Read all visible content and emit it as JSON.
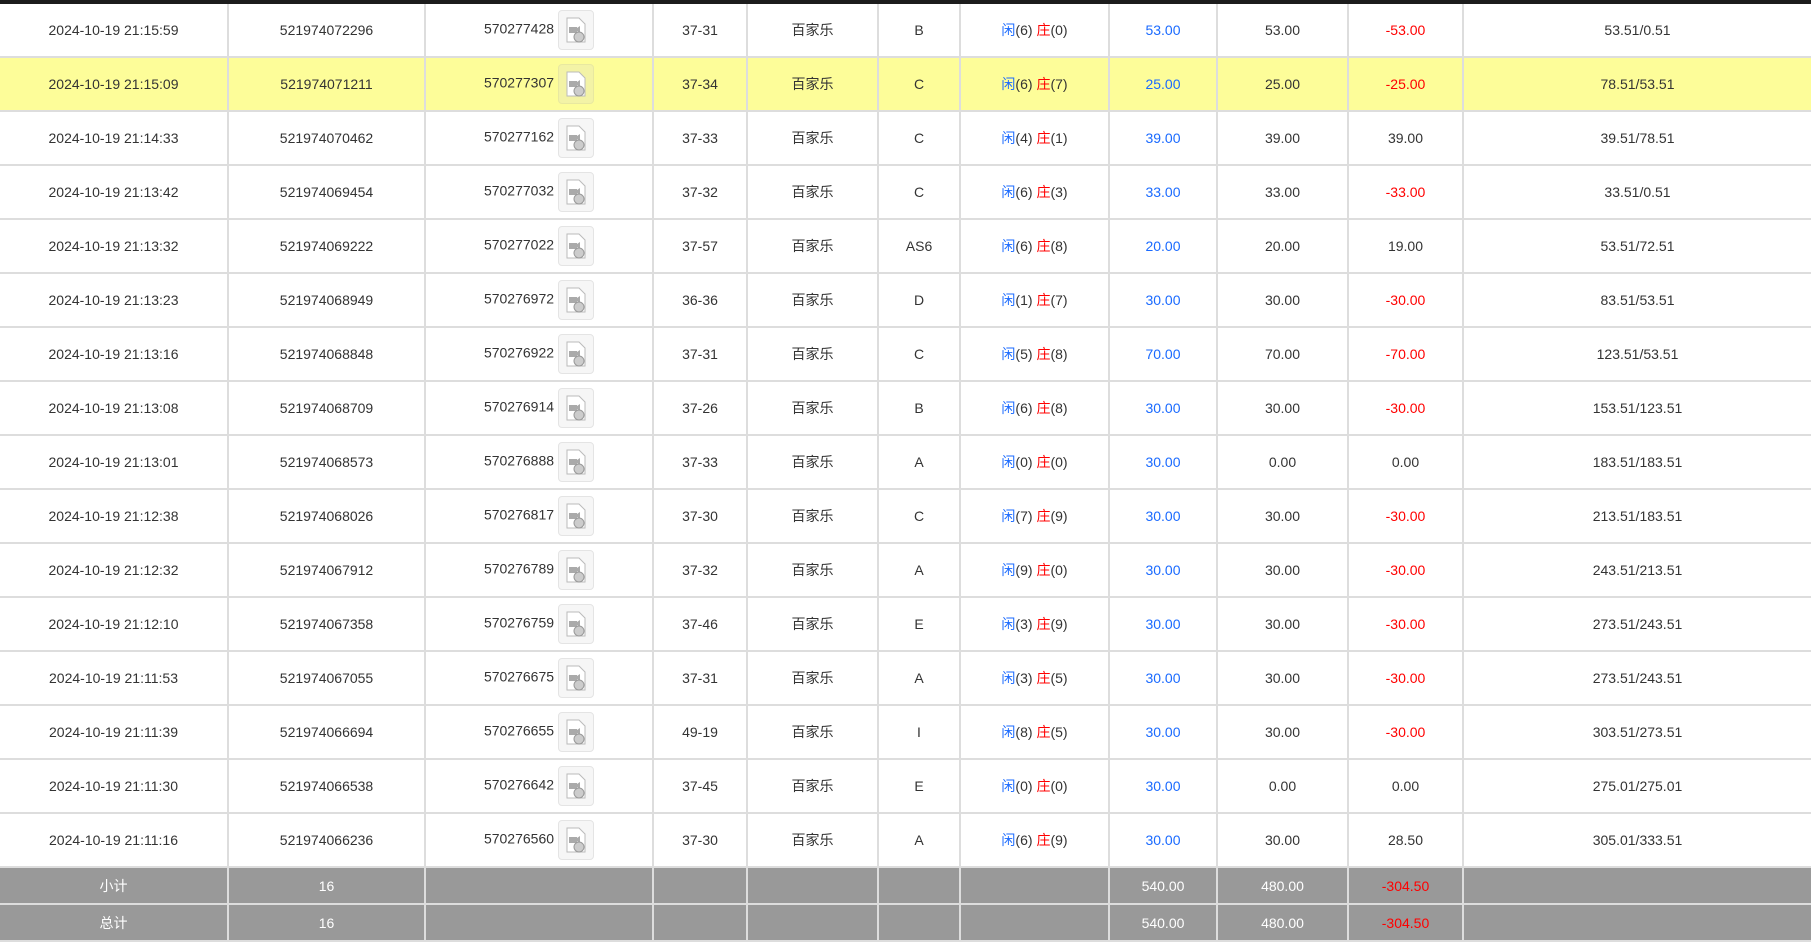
{
  "rows": [
    [
      "2024-10-19 21:15:59",
      "521974072296",
      "570277428",
      "37-31",
      "百家乐",
      "B",
      "6",
      "0",
      "53.00",
      "53.00",
      "-53.00",
      "53.51/0.51"
    ],
    [
      "2024-10-19 21:15:09",
      "521974071211",
      "570277307",
      "37-34",
      "百家乐",
      "C",
      "6",
      "7",
      "25.00",
      "25.00",
      "-25.00",
      "78.51/53.51"
    ],
    [
      "2024-10-19 21:14:33",
      "521974070462",
      "570277162",
      "37-33",
      "百家乐",
      "C",
      "4",
      "1",
      "39.00",
      "39.00",
      "39.00",
      "39.51/78.51"
    ],
    [
      "2024-10-19 21:13:42",
      "521974069454",
      "570277032",
      "37-32",
      "百家乐",
      "C",
      "6",
      "3",
      "33.00",
      "33.00",
      "-33.00",
      "33.51/0.51"
    ],
    [
      "2024-10-19 21:13:32",
      "521974069222",
      "570277022",
      "37-57",
      "百家乐",
      "AS6",
      "6",
      "8",
      "20.00",
      "20.00",
      "19.00",
      "53.51/72.51"
    ],
    [
      "2024-10-19 21:13:23",
      "521974068949",
      "570276972",
      "36-36",
      "百家乐",
      "D",
      "1",
      "7",
      "30.00",
      "30.00",
      "-30.00",
      "83.51/53.51"
    ],
    [
      "2024-10-19 21:13:16",
      "521974068848",
      "570276922",
      "37-31",
      "百家乐",
      "C",
      "5",
      "8",
      "70.00",
      "70.00",
      "-70.00",
      "123.51/53.51"
    ],
    [
      "2024-10-19 21:13:08",
      "521974068709",
      "570276914",
      "37-26",
      "百家乐",
      "B",
      "6",
      "8",
      "30.00",
      "30.00",
      "-30.00",
      "153.51/123.51"
    ],
    [
      "2024-10-19 21:13:01",
      "521974068573",
      "570276888",
      "37-33",
      "百家乐",
      "A",
      "0",
      "0",
      "30.00",
      "0.00",
      "0.00",
      "183.51/183.51"
    ],
    [
      "2024-10-19 21:12:38",
      "521974068026",
      "570276817",
      "37-30",
      "百家乐",
      "C",
      "7",
      "9",
      "30.00",
      "30.00",
      "-30.00",
      "213.51/183.51"
    ],
    [
      "2024-10-19 21:12:32",
      "521974067912",
      "570276789",
      "37-32",
      "百家乐",
      "A",
      "9",
      "0",
      "30.00",
      "30.00",
      "-30.00",
      "243.51/213.51"
    ],
    [
      "2024-10-19 21:12:10",
      "521974067358",
      "570276759",
      "37-46",
      "百家乐",
      "E",
      "3",
      "9",
      "30.00",
      "30.00",
      "-30.00",
      "273.51/243.51"
    ],
    [
      "2024-10-19 21:11:53",
      "521974067055",
      "570276675",
      "37-31",
      "百家乐",
      "A",
      "3",
      "5",
      "30.00",
      "30.00",
      "-30.00",
      "273.51/243.51"
    ],
    [
      "2024-10-19 21:11:39",
      "521974066694",
      "570276655",
      "49-19",
      "百家乐",
      "I",
      "8",
      "5",
      "30.00",
      "30.00",
      "-30.00",
      "303.51/273.51"
    ],
    [
      "2024-10-19 21:11:30",
      "521974066538",
      "570276642",
      "37-45",
      "百家乐",
      "E",
      "0",
      "0",
      "30.00",
      "0.00",
      "0.00",
      "275.01/275.01"
    ],
    [
      "2024-10-19 21:11:16",
      "521974066236",
      "570276560",
      "37-30",
      "百家乐",
      "A",
      "6",
      "9",
      "30.00",
      "30.00",
      "28.50",
      "305.01/333.51"
    ]
  ],
  "highlighted_row": 1,
  "player_label": "闲",
  "banker_label": "庄",
  "video_icon": "video-file-icon",
  "subtotal": {
    "label": "小计",
    "count": "16",
    "bet": "540.00",
    "valid": "480.00",
    "winloss": "-304.50"
  },
  "total": {
    "label": "总计",
    "count": "16",
    "bet": "540.00",
    "valid": "480.00",
    "winloss": "-304.50"
  },
  "colors": {
    "highlight": "#fdfd99",
    "blue": "#1a6aff",
    "red": "#ff0000",
    "summary_bg": "#999999"
  }
}
